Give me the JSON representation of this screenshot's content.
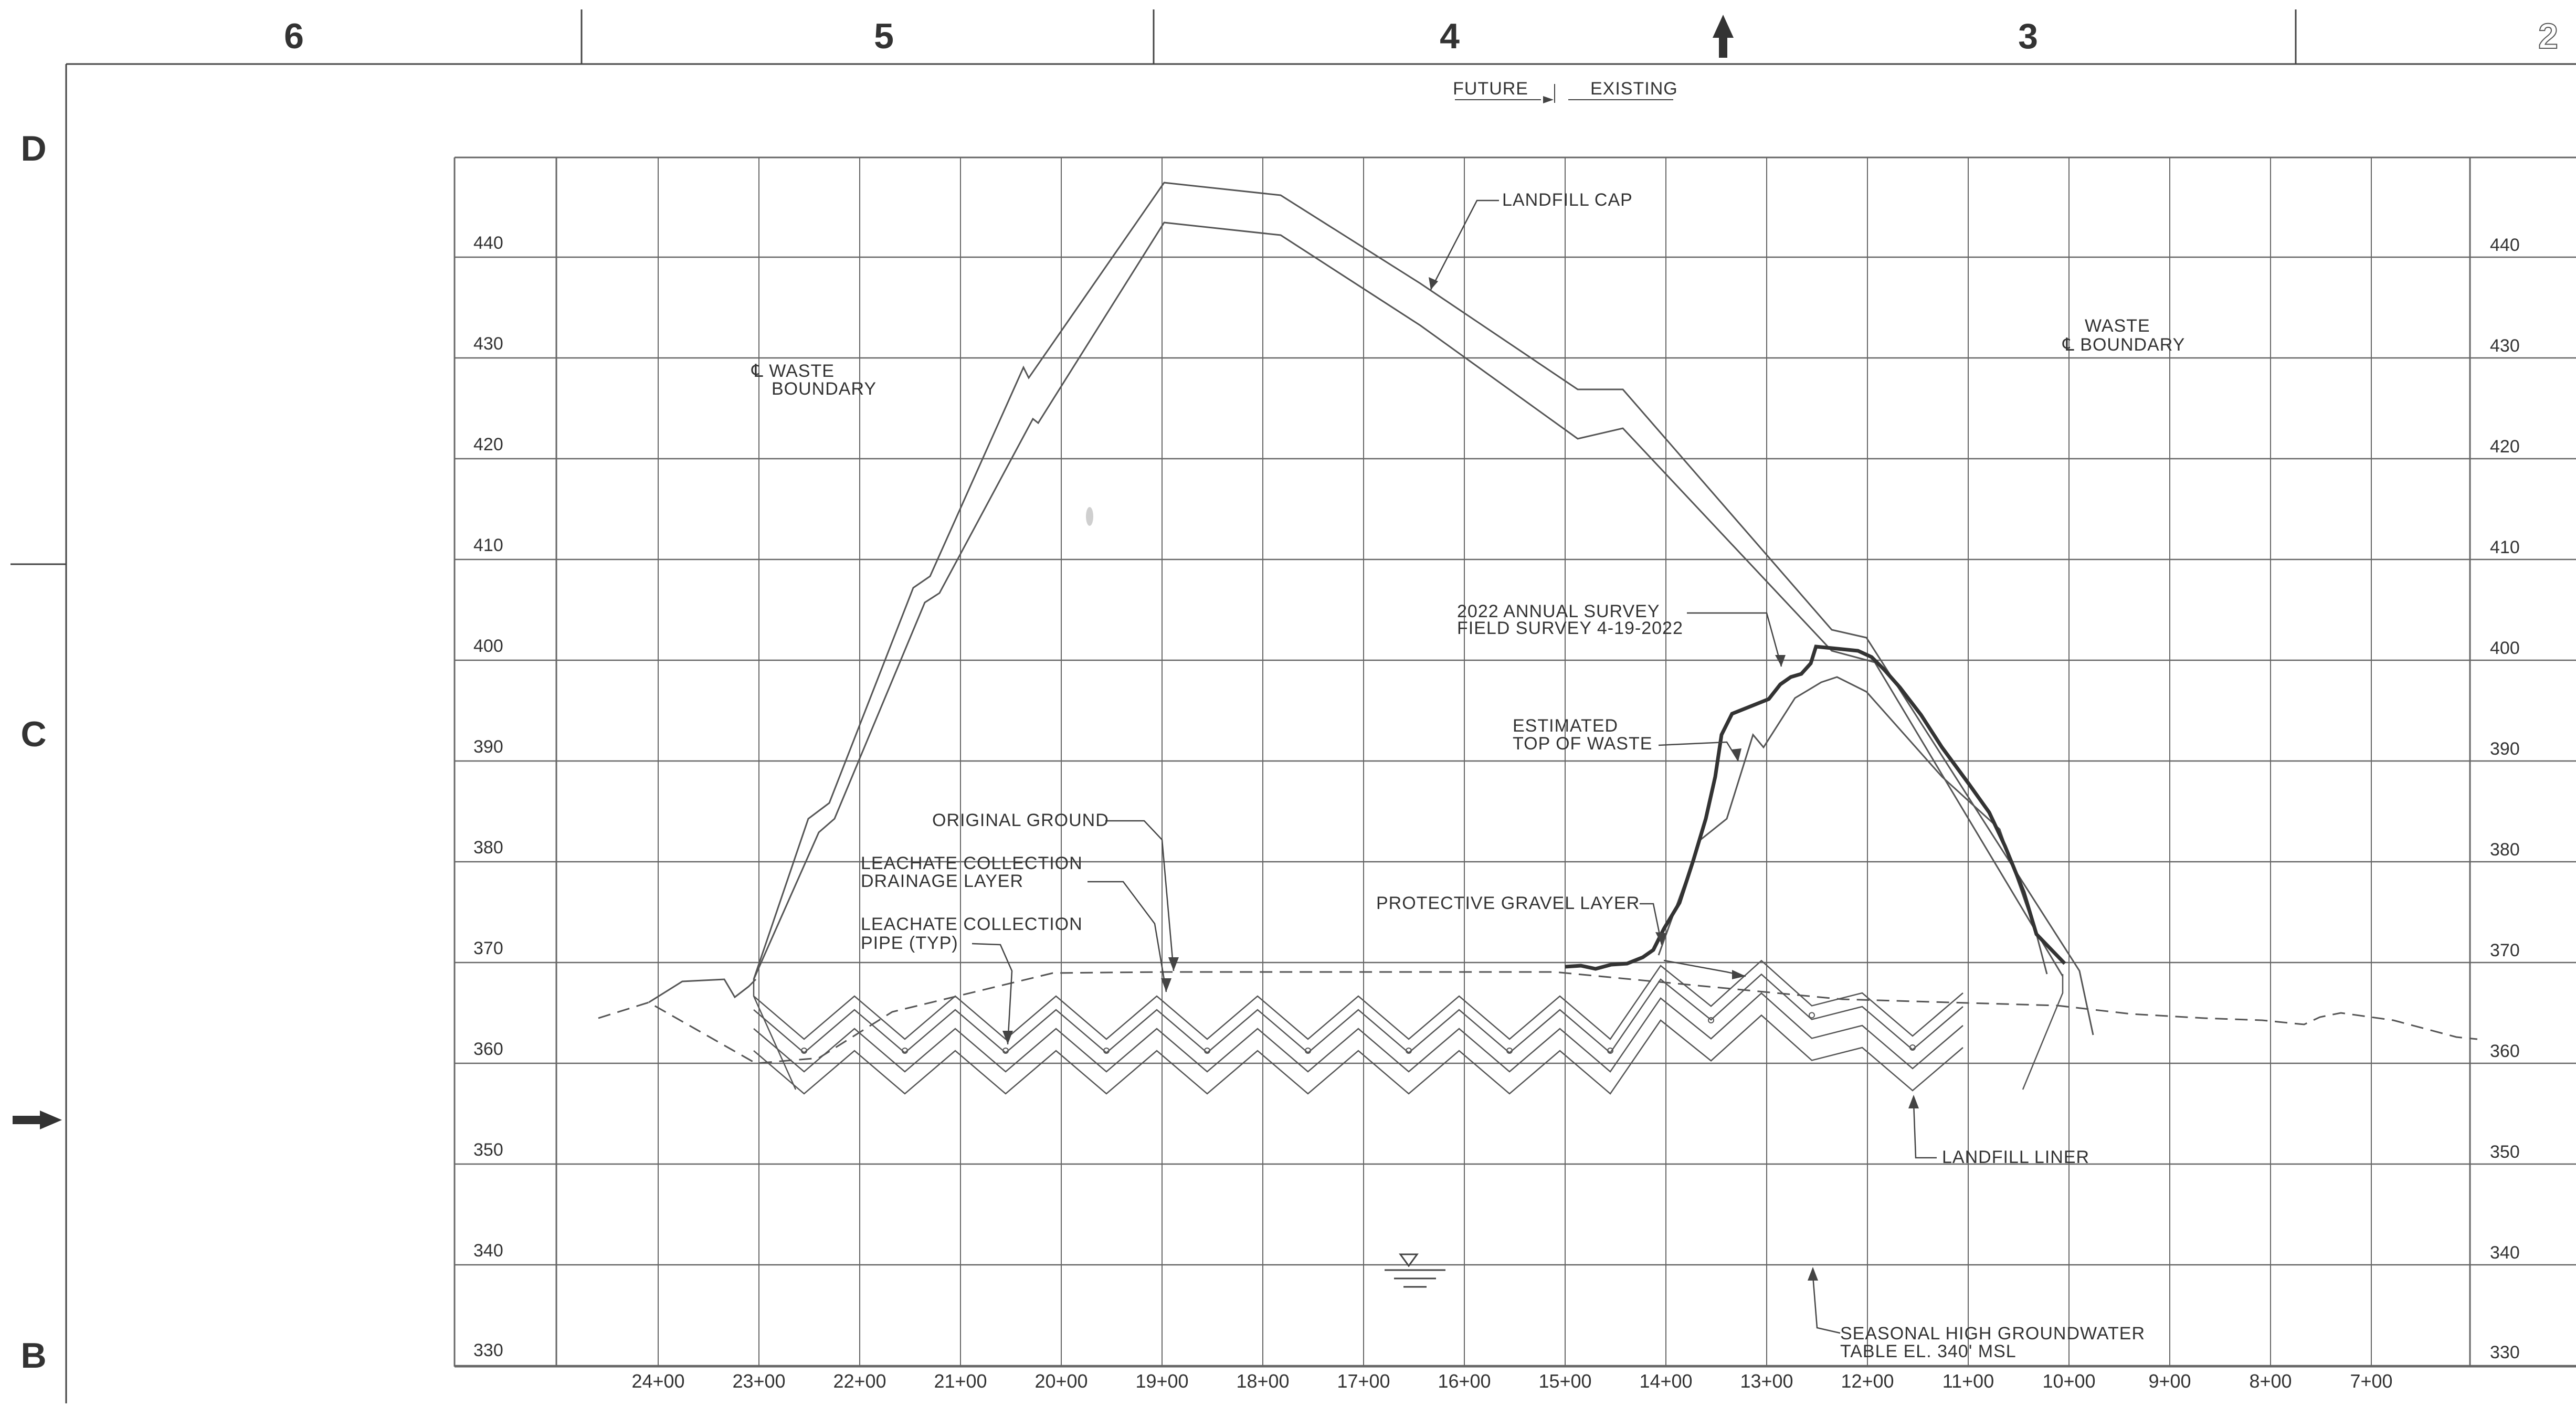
{
  "border": {
    "zones_top": [
      "6",
      "5",
      "4",
      "3",
      "2"
    ],
    "zones_side": [
      "D",
      "C",
      "B"
    ]
  },
  "header_note": {
    "left": "FUTURE",
    "right": "EXISTING"
  },
  "elevations": [
    "440",
    "430",
    "420",
    "410",
    "400",
    "390",
    "380",
    "370",
    "360",
    "350",
    "340",
    "330"
  ],
  "stations": [
    "24+00",
    "23+00",
    "22+00",
    "21+00",
    "20+00",
    "19+00",
    "18+00",
    "17+00",
    "16+00",
    "15+00",
    "14+00",
    "13+00",
    "12+00",
    "11+00",
    "10+00",
    "9+00",
    "8+00",
    "7+00"
  ],
  "labels": {
    "landfill_cap": "LANDFILL CAP",
    "waste_boundary_left_1": "℄ WASTE",
    "waste_boundary_left_2": "BOUNDARY",
    "waste_boundary_right_1": "WASTE",
    "waste_boundary_right_2": "℄ BOUNDARY",
    "survey_1": "2022 ANNUAL SURVEY",
    "survey_2": "FIELD SURVEY 4-19-2022",
    "top_waste_1": "ESTIMATED",
    "top_waste_2": "TOP OF WASTE",
    "original_ground": "ORIGINAL GROUND",
    "drainage_1": "LEACHATE COLLECTION",
    "drainage_2": "DRAINAGE LAYER",
    "pipe_1": "LEACHATE COLLECTION",
    "pipe_2": "PIPE (TYP)",
    "gravel": "PROTECTIVE GRAVEL LAYER",
    "liner": "LANDFILL LINER",
    "groundwater_1": "SEASONAL HIGH GROUNDWATER",
    "groundwater_2": "TABLE EL. 340' MSL"
  },
  "colors": {
    "line": "#555555",
    "bold": "#333333",
    "grid": "#666666"
  }
}
